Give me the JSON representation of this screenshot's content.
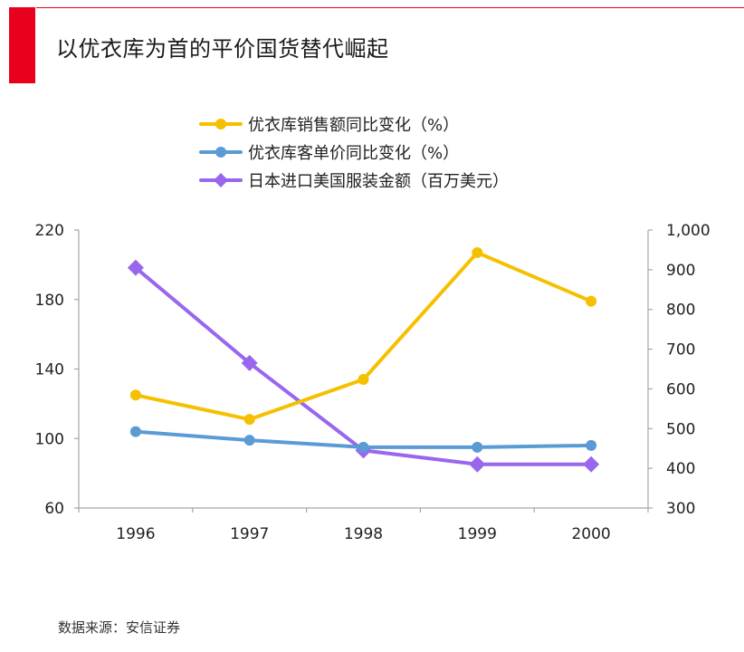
{
  "page": {
    "title": "以优衣库为首的平价国货替代崛起",
    "source": "数据来源：安信证券"
  },
  "colors": {
    "accent": "#e8001c",
    "axis": "#a6a6a6",
    "text": "#222222"
  },
  "chart_data": {
    "type": "line",
    "categories": [
      "1996",
      "1997",
      "1998",
      "1999",
      "2000"
    ],
    "legend_position": "top",
    "grid": false,
    "y_left": {
      "min": 60,
      "max": 220,
      "ticks": [
        "60",
        "100",
        "140",
        "180",
        "220"
      ],
      "tick_values": [
        60,
        100,
        140,
        180,
        220
      ]
    },
    "y_right": {
      "min": 300,
      "max": 1000,
      "ticks": [
        "300",
        "400",
        "500",
        "600",
        "700",
        "800",
        "900",
        "1,000"
      ],
      "tick_values": [
        300,
        400,
        500,
        600,
        700,
        800,
        900,
        1000
      ]
    },
    "series": [
      {
        "name": "优衣库销售额同比变化（%）",
        "axis": "left",
        "color": "#f5c000",
        "marker": "circle",
        "values": [
          125,
          111,
          134,
          207,
          179
        ]
      },
      {
        "name": "优衣库客单价同比变化（%）",
        "axis": "left",
        "color": "#5b9bd5",
        "marker": "circle",
        "values": [
          104,
          99,
          95,
          95,
          96
        ]
      },
      {
        "name": "日本进口美国服装金额（百万美元）",
        "axis": "right",
        "color": "#9966ee",
        "marker": "diamond",
        "values": [
          905,
          665,
          445,
          410,
          410
        ]
      }
    ]
  }
}
